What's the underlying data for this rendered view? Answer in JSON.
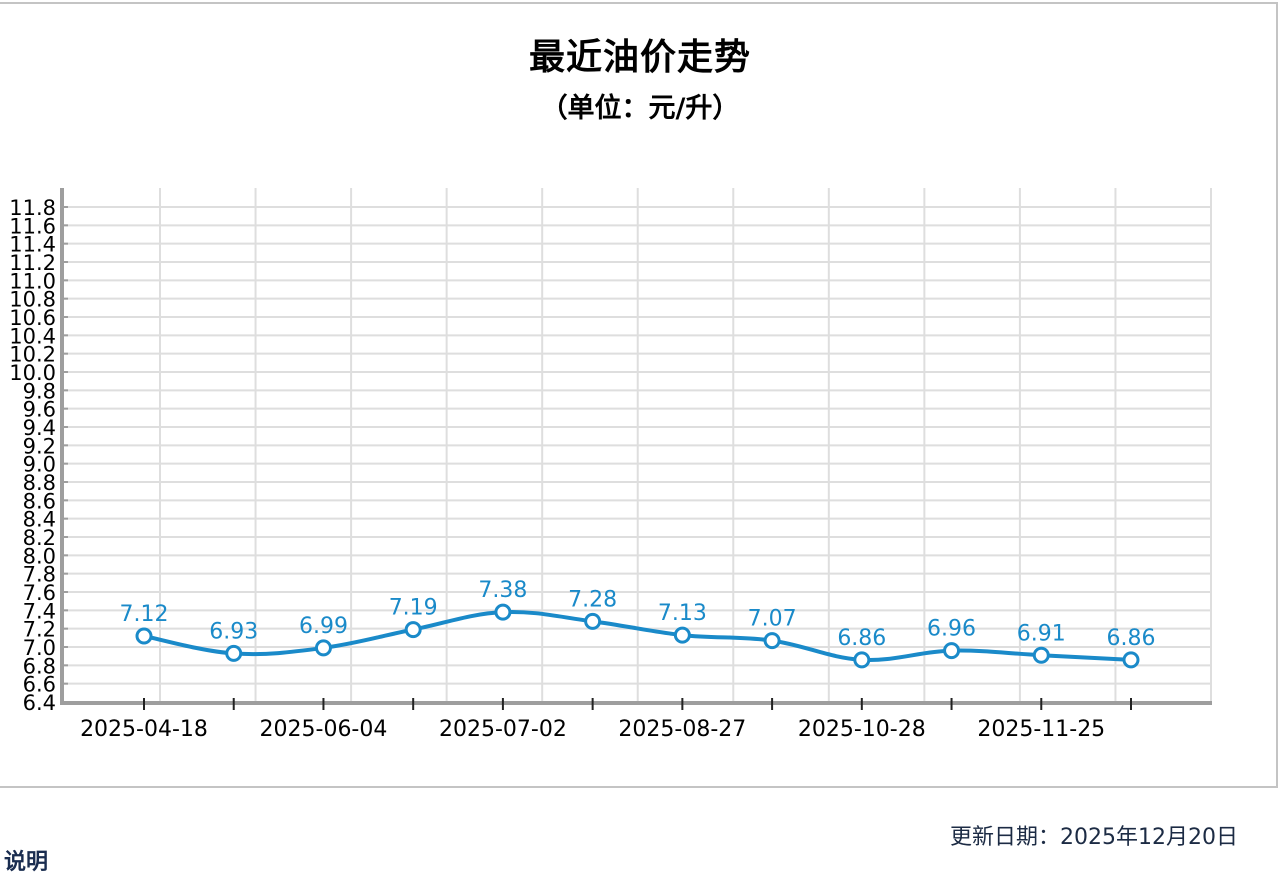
{
  "page": {
    "title": "最近油价走势",
    "subtitle": "（单位：元/升）",
    "update_label": "更新日期：2025年12月20日",
    "section_heading": "说明"
  },
  "colors": {
    "series": "#1a8ac9",
    "axis": "#9e9e9e",
    "grid": "#dedede",
    "label_text": "#1a8ac9",
    "tick_text": "#000000"
  },
  "chart_data": {
    "type": "line",
    "title": "最近油价走势",
    "subtitle": "（单位：元/升）",
    "xlabel": "",
    "ylabel": "",
    "ylim": [
      6.4,
      11.8
    ],
    "ytick_step": 0.2,
    "yticks": [
      "11.8",
      "11.6",
      "11.4",
      "11.2",
      "11.0",
      "10.8",
      "10.6",
      "10.4",
      "10.2",
      "10.0",
      "9.8",
      "9.6",
      "9.4",
      "9.2",
      "9.0",
      "8.8",
      "8.6",
      "8.4",
      "8.2",
      "8.0",
      "7.8",
      "7.6",
      "7.4",
      "7.2",
      "7.0",
      "6.8",
      "6.6",
      "6.4"
    ],
    "xtick_labels": [
      "2025-04-18",
      "2025-06-04",
      "2025-07-02",
      "2025-08-27",
      "2025-10-28",
      "2025-11-25"
    ],
    "xtick_label_indices": [
      0,
      2,
      4,
      6,
      8,
      10
    ],
    "grid": true,
    "legend": "none",
    "smooth": true,
    "series": [
      {
        "name": "油价",
        "values": [
          7.12,
          6.93,
          6.99,
          7.19,
          7.38,
          7.28,
          7.13,
          7.07,
          6.86,
          6.96,
          6.91,
          6.86
        ],
        "data_labels": [
          "7.12",
          "6.93",
          "6.99",
          "7.19",
          "7.38",
          "7.28",
          "7.13",
          "7.07",
          "6.86",
          "6.96",
          "6.91",
          "6.86"
        ]
      }
    ]
  }
}
